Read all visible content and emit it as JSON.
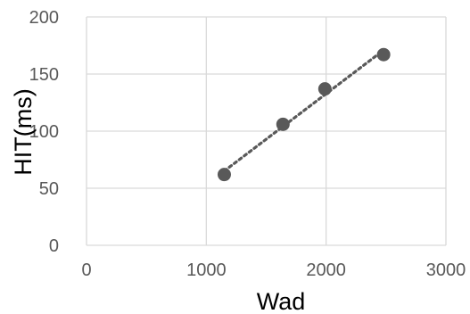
{
  "chart_data": {
    "type": "scatter",
    "title": "",
    "xlabel": "Wad",
    "ylabel": "HIT(ms)",
    "xlim": [
      0,
      3000
    ],
    "ylim": [
      0,
      200
    ],
    "x_ticks": [
      "0",
      "1000",
      "2000",
      "3000"
    ],
    "y_ticks": [
      "0",
      "50",
      "100",
      "150",
      "200"
    ],
    "grid": true,
    "trendline": "linear (dotted)",
    "series": [
      {
        "x": [
          1150,
          1640,
          1990,
          2480
        ],
        "y": [
          62,
          106,
          137,
          167
        ]
      }
    ],
    "colors": {
      "marker": "#595959",
      "trendline": "#595959",
      "grid": "#d9d9d9",
      "tick_text": "#595959"
    }
  }
}
